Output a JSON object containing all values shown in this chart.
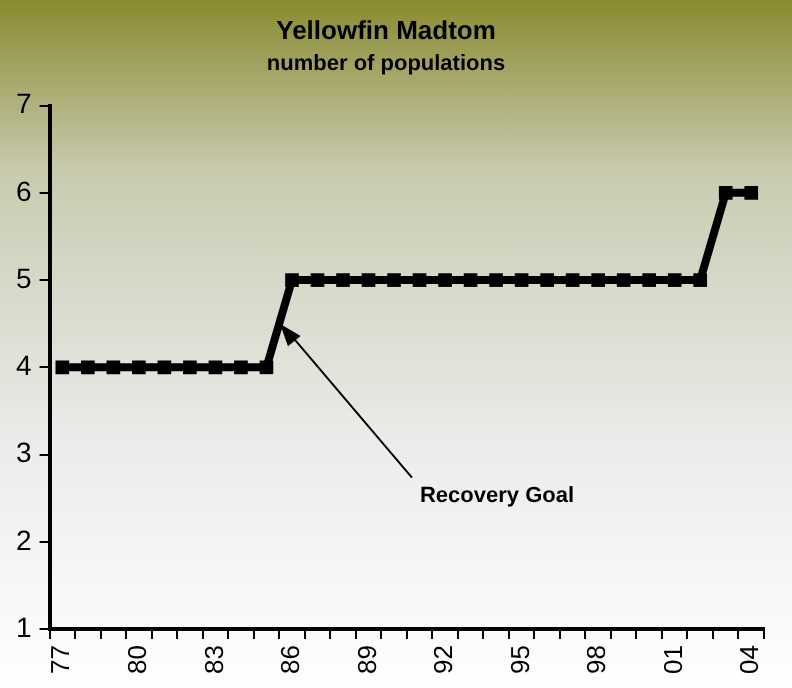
{
  "chart_data": {
    "type": "line",
    "title": "Yellowfin Madtom",
    "subtitle": "number of populations",
    "categories": [
      "77",
      null,
      null,
      "80",
      null,
      null,
      "83",
      null,
      null,
      "86",
      null,
      null,
      "89",
      null,
      null,
      "92",
      null,
      null,
      "95",
      null,
      null,
      "98",
      null,
      null,
      "01",
      null,
      null,
      "04"
    ],
    "series": [
      {
        "color": "#000000",
        "values": [
          4,
          4,
          4,
          4,
          4,
          4,
          4,
          4,
          4,
          5,
          5,
          5,
          5,
          5,
          5,
          5,
          5,
          5,
          5,
          5,
          5,
          5,
          5,
          5,
          5,
          5,
          6,
          6
        ]
      }
    ],
    "ylim": [
      1,
      7
    ],
    "yticks": [
      1,
      2,
      3,
      4,
      5,
      6,
      7
    ],
    "grid": false,
    "legend": false,
    "marker": "square",
    "line_style": "solid",
    "annotations": [
      {
        "text": "Recovery Goal",
        "x": "86",
        "y": 4.5
      }
    ]
  }
}
